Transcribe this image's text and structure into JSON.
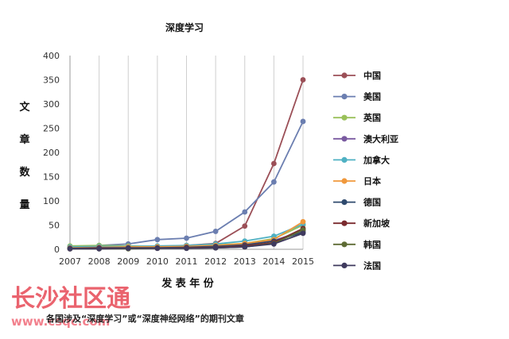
{
  "chart_data": {
    "type": "line",
    "title": "深度学习",
    "xlabel": "发 表 年 份",
    "ylabel": [
      "文",
      "章",
      "数",
      "量"
    ],
    "x": [
      2007,
      2008,
      2009,
      2010,
      2011,
      2012,
      2013,
      2014,
      2015
    ],
    "ylim": [
      0,
      400
    ],
    "yticks": [
      0,
      50,
      100,
      150,
      200,
      250,
      300,
      350,
      400
    ],
    "grid": "vertical",
    "legend_position": "right",
    "series": [
      {
        "name": "中国",
        "color": "#9b4f57",
        "values": [
          3,
          5,
          5,
          6,
          8,
          12,
          48,
          177,
          350
        ]
      },
      {
        "name": "美国",
        "color": "#6b7eb0",
        "values": [
          4,
          8,
          11,
          20,
          23,
          37,
          77,
          139,
          264
        ]
      },
      {
        "name": "英国",
        "color": "#9ac15a",
        "values": [
          7,
          8,
          7,
          6,
          7,
          9,
          12,
          22,
          50
        ]
      },
      {
        "name": "澳大利亚",
        "color": "#7a5aa0",
        "values": [
          2,
          3,
          3,
          4,
          5,
          6,
          10,
          18,
          38
        ]
      },
      {
        "name": "加拿大",
        "color": "#4fb1c3",
        "values": [
          5,
          6,
          6,
          7,
          8,
          11,
          17,
          27,
          52
        ]
      },
      {
        "name": "日本",
        "color": "#f0983c",
        "values": [
          3,
          4,
          5,
          5,
          6,
          8,
          12,
          20,
          57
        ]
      },
      {
        "name": "德国",
        "color": "#2f4a6e",
        "values": [
          2,
          3,
          3,
          3,
          4,
          6,
          9,
          17,
          35
        ]
      },
      {
        "name": "新加坡",
        "color": "#7a2a2e",
        "values": [
          1,
          2,
          2,
          2,
          3,
          4,
          7,
          14,
          43
        ]
      },
      {
        "name": "韩国",
        "color": "#5e6b35",
        "values": [
          1,
          1,
          1,
          2,
          2,
          3,
          5,
          12,
          40
        ]
      },
      {
        "name": "法国",
        "color": "#3f3a5e",
        "values": [
          1,
          1,
          2,
          2,
          2,
          3,
          5,
          11,
          33
        ]
      }
    ]
  },
  "caption": "各国涉及“深度学习”或“深度神经网络”的期刊文章",
  "watermark": {
    "text": "长沙社区通",
    "url": "www.csqc.com"
  }
}
